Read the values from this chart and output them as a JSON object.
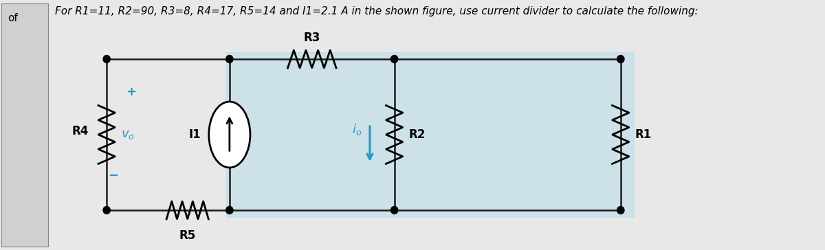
{
  "title": "For R1=11, R2=90, R3=8, R4=17, R5=14 and I1=2.1 A in the shown figure, use current divider to calculate the following:",
  "title_fontsize": 11,
  "bg_color": "#e8e8e8",
  "left_box_color": "#d0d0d0",
  "blue_highlight": "#b8dce8",
  "wire_color": "#1a1a1a",
  "arrow_color": "#2299cc",
  "label_fontsize": 11,
  "of_text": "of",
  "cyan_color": "#2299cc",
  "plus_minus_color": "#2299cc"
}
